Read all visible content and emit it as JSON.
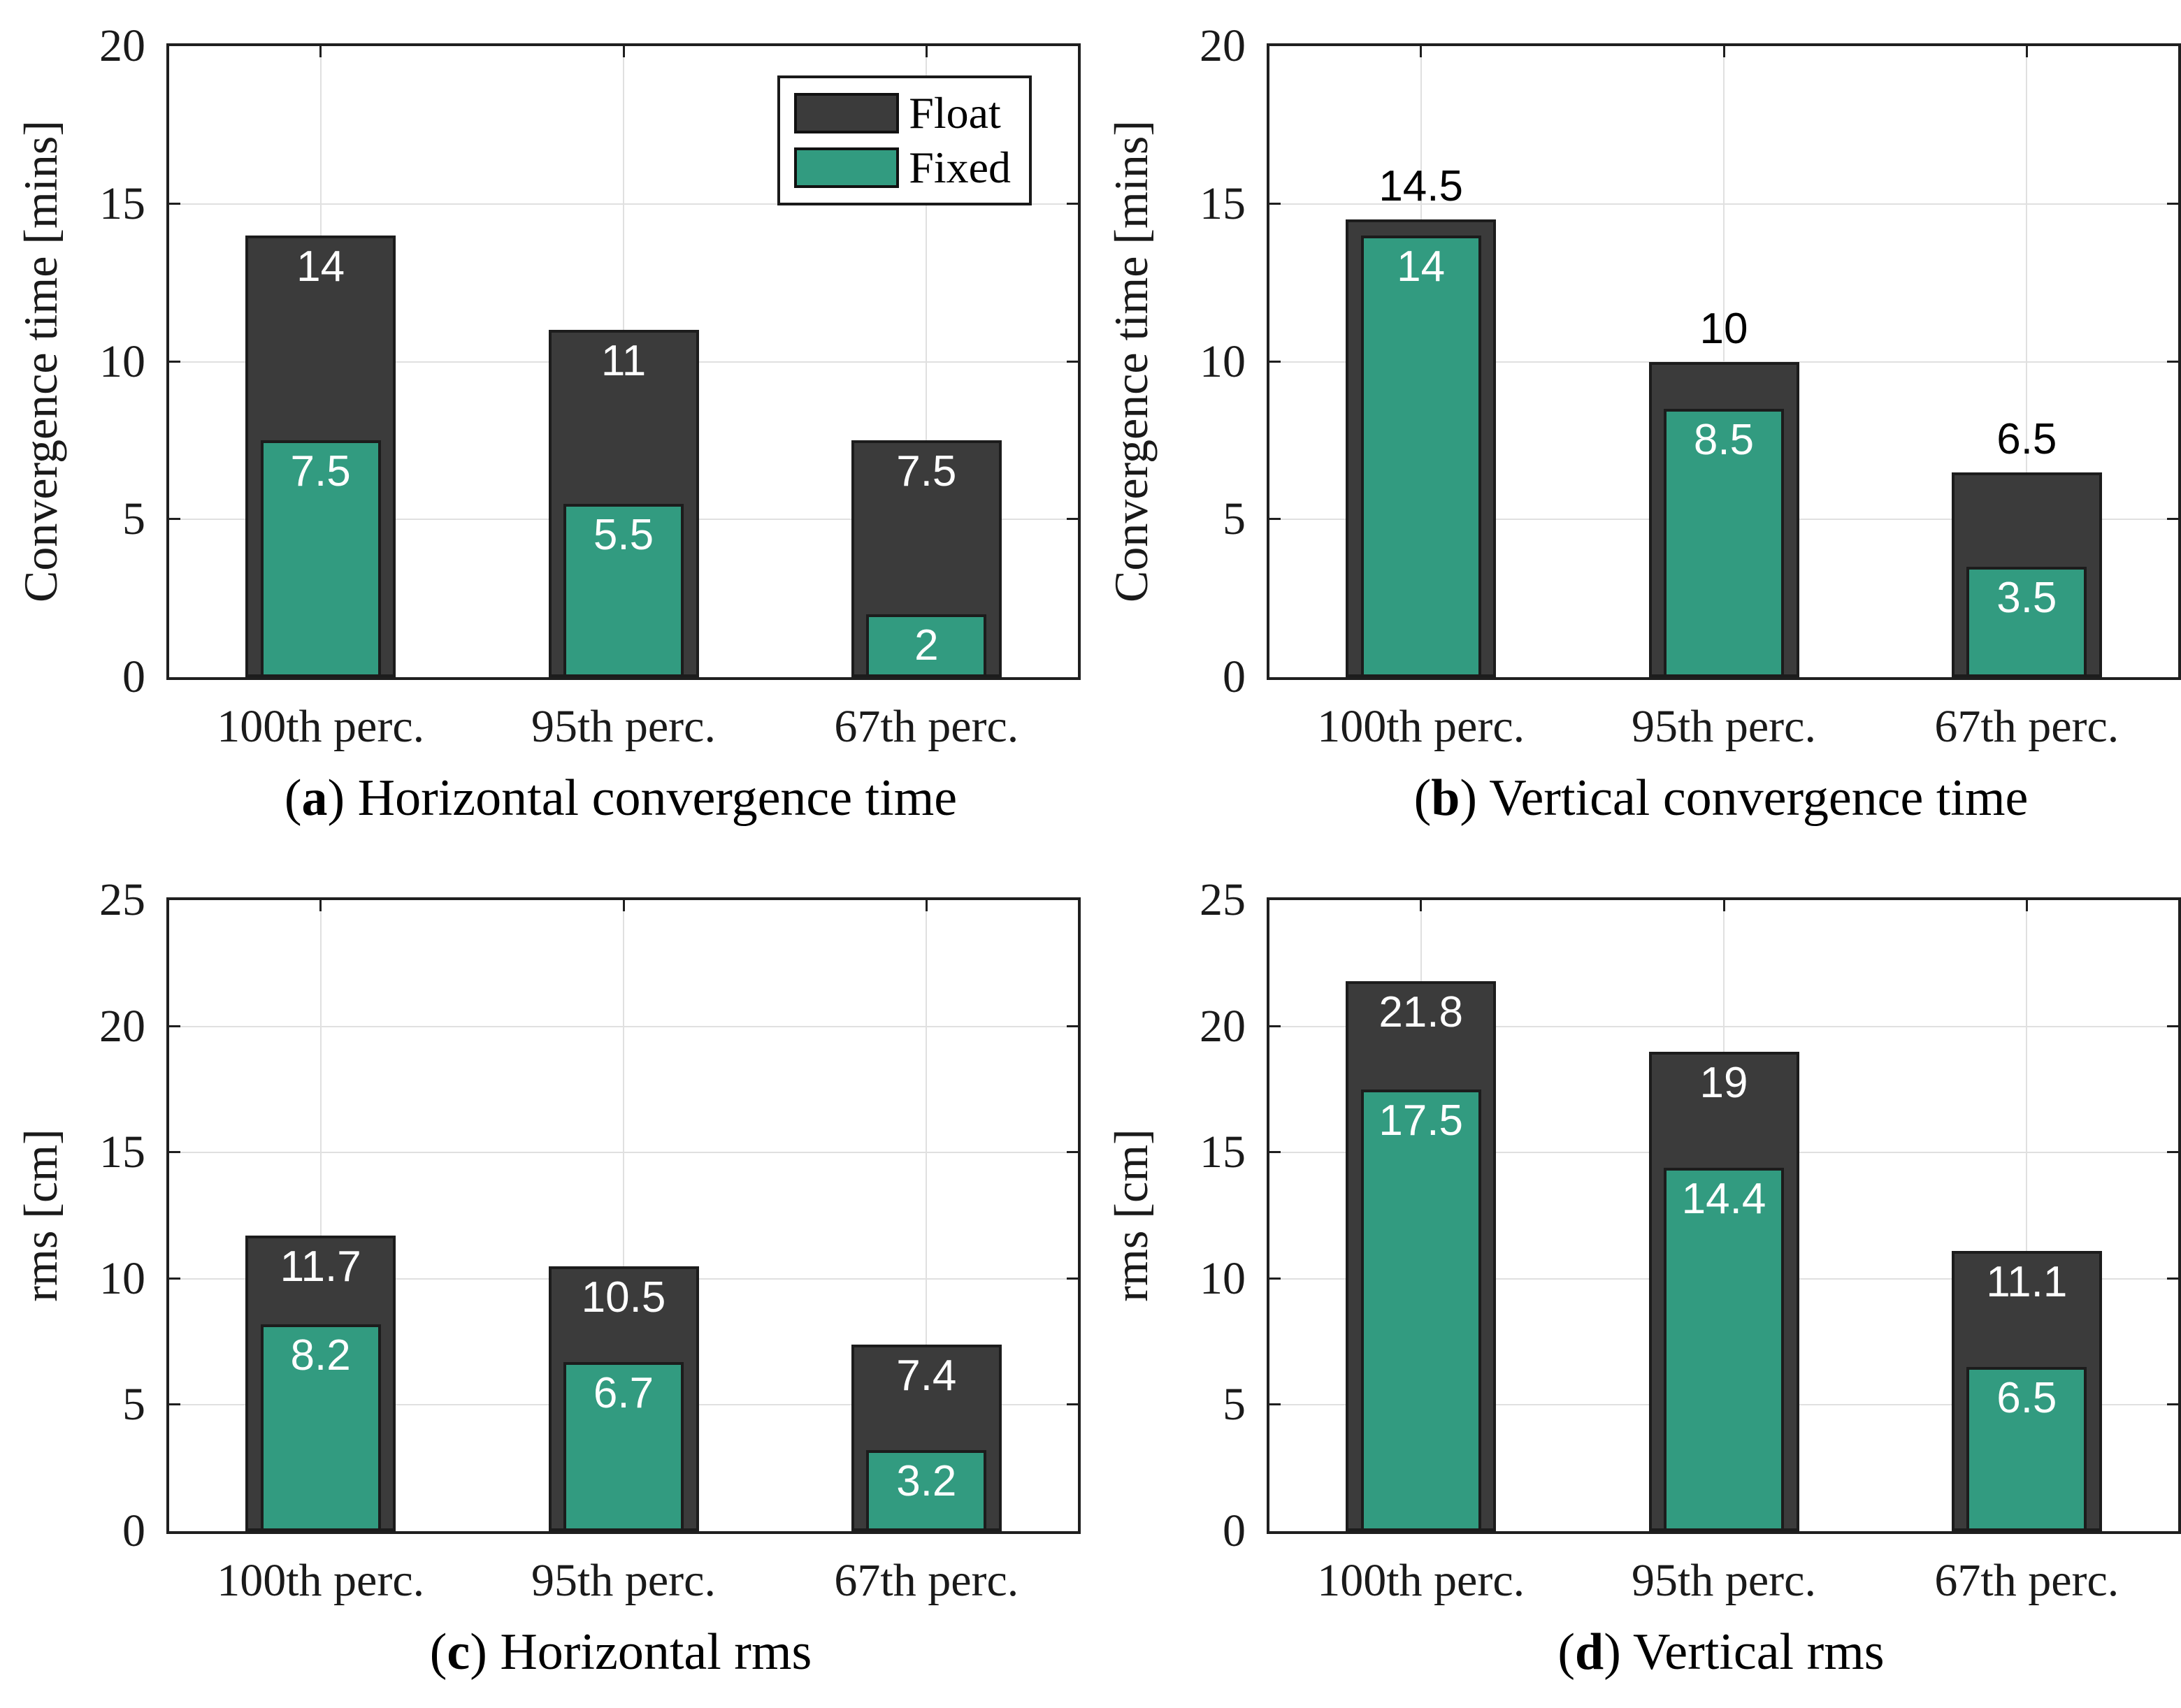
{
  "colors": {
    "float": "#3b3b3b",
    "fixed": "#329b80",
    "bar_edge": "#1c1c1c",
    "axis": "#1f1f1f",
    "grid": "#e0e0e0",
    "tick_text": "#1a1a1a",
    "label_inside": "#ffffff",
    "label_above": "#000000"
  },
  "legend": {
    "panel": "a",
    "position": "top-right-inside",
    "items": [
      {
        "label": "Float",
        "color_key": "float"
      },
      {
        "label": "Fixed",
        "color_key": "fixed"
      }
    ]
  },
  "chart_data": [
    {
      "id": "a",
      "type": "bar",
      "categories": [
        "100th perc.",
        "95th perc.",
        "67th perc."
      ],
      "series": [
        {
          "name": "Float",
          "values": [
            14,
            11,
            7.5
          ]
        },
        {
          "name": "Fixed",
          "values": [
            7.5,
            5.5,
            2
          ]
        }
      ],
      "value_labels": {
        "Float": [
          "14",
          "11",
          "7.5"
        ],
        "Fixed": [
          "7.5",
          "5.5",
          "2"
        ]
      },
      "title": "",
      "xlabel": "",
      "ylabel": "Convergence time [mins]",
      "ylim": [
        0,
        20
      ],
      "yticks": [
        0,
        5,
        10,
        15,
        20
      ],
      "grid": true,
      "legend_visible": true,
      "float_label_position": "inside",
      "caption": {
        "open": "(",
        "letter": "a",
        "rest": ") Horizontal convergence time"
      }
    },
    {
      "id": "b",
      "type": "bar",
      "categories": [
        "100th perc.",
        "95th perc.",
        "67th perc."
      ],
      "series": [
        {
          "name": "Float",
          "values": [
            14.5,
            10,
            6.5
          ]
        },
        {
          "name": "Fixed",
          "values": [
            14,
            8.5,
            3.5
          ]
        }
      ],
      "value_labels": {
        "Float": [
          "14.5",
          "10",
          "6.5"
        ],
        "Fixed": [
          "14",
          "8.5",
          "3.5"
        ]
      },
      "title": "",
      "xlabel": "",
      "ylabel": "Convergence time [mins]",
      "ylim": [
        0,
        20
      ],
      "yticks": [
        0,
        5,
        10,
        15,
        20
      ],
      "grid": true,
      "legend_visible": false,
      "float_label_position": "above",
      "caption": {
        "open": "(",
        "letter": "b",
        "rest": ") Vertical convergence time"
      }
    },
    {
      "id": "c",
      "type": "bar",
      "categories": [
        "100th perc.",
        "95th perc.",
        "67th perc."
      ],
      "series": [
        {
          "name": "Float",
          "values": [
            11.7,
            10.5,
            7.4
          ]
        },
        {
          "name": "Fixed",
          "values": [
            8.2,
            6.7,
            3.2
          ]
        }
      ],
      "value_labels": {
        "Float": [
          "11.7",
          "10.5",
          "7.4"
        ],
        "Fixed": [
          "8.2",
          "6.7",
          "3.2"
        ]
      },
      "title": "",
      "xlabel": "",
      "ylabel": "rms [cm]",
      "ylim": [
        0,
        25
      ],
      "yticks": [
        0,
        5,
        10,
        15,
        20,
        25
      ],
      "grid": true,
      "legend_visible": false,
      "float_label_position": "inside",
      "caption": {
        "open": "(",
        "letter": "c",
        "rest": ") Horizontal rms"
      }
    },
    {
      "id": "d",
      "type": "bar",
      "categories": [
        "100th perc.",
        "95th perc.",
        "67th perc."
      ],
      "series": [
        {
          "name": "Float",
          "values": [
            21.8,
            19,
            11.1
          ]
        },
        {
          "name": "Fixed",
          "values": [
            17.5,
            14.4,
            6.5
          ]
        }
      ],
      "value_labels": {
        "Float": [
          "21.8",
          "19",
          "11.1"
        ],
        "Fixed": [
          "17.5",
          "14.4",
          "6.5"
        ]
      },
      "title": "",
      "xlabel": "",
      "ylabel": "rms [cm]",
      "ylim": [
        0,
        25
      ],
      "yticks": [
        0,
        5,
        10,
        15,
        20,
        25
      ],
      "grid": true,
      "legend_visible": false,
      "float_label_position": "inside",
      "caption": {
        "open": "(",
        "letter": "d",
        "rest": ") Vertical rms"
      }
    }
  ]
}
